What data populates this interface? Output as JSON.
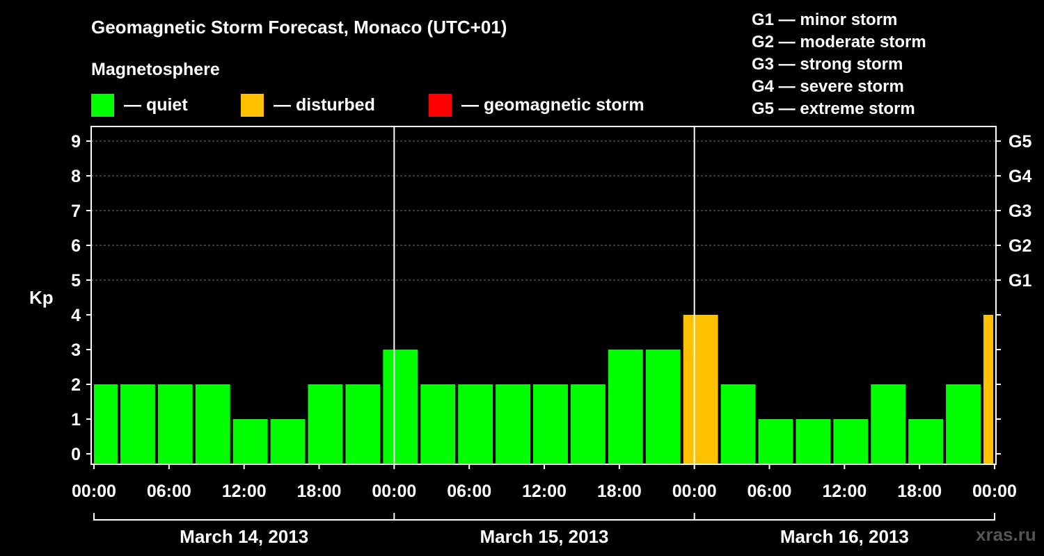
{
  "title": "Geomagnetic Storm Forecast, Monaco (UTC+01)",
  "subtitle": "Magnetosphere",
  "legend": [
    {
      "label": "— quiet",
      "color": "#00ff00"
    },
    {
      "label": "— disturbed",
      "color": "#ffc000"
    },
    {
      "label": "— geomagnetic storm",
      "color": "#ff0000"
    }
  ],
  "g_scale": [
    "G1 — minor storm",
    "G2 — moderate storm",
    "G3 — strong storm",
    "G4 — severe storm",
    "G5 — extreme storm"
  ],
  "watermark": "xras.ru",
  "chart_data": {
    "type": "bar",
    "ylabel": "Kp",
    "ylim": [
      0,
      9
    ],
    "y_ticks": [
      "0",
      "1",
      "2",
      "3",
      "4",
      "5",
      "6",
      "7",
      "8",
      "9"
    ],
    "right_ticks": [
      {
        "label": "G1",
        "kp": 5
      },
      {
        "label": "G2",
        "kp": 6
      },
      {
        "label": "G3",
        "kp": 7
      },
      {
        "label": "G4",
        "kp": 8
      },
      {
        "label": "G5",
        "kp": 9
      }
    ],
    "x_tick_labels": [
      "00:00",
      "06:00",
      "12:00",
      "18:00",
      "00:00",
      "06:00",
      "12:00",
      "18:00",
      "00:00",
      "06:00",
      "12:00",
      "18:00",
      "00:00"
    ],
    "day_labels": [
      "March 14, 2013",
      "March 15, 2013",
      "March 16, 2013"
    ],
    "x_hours_range": [
      0,
      72
    ],
    "bars": [
      {
        "start_hour": 0,
        "end_hour": 2,
        "kp": 2,
        "level": "quiet"
      },
      {
        "start_hour": 2,
        "end_hour": 5,
        "kp": 2,
        "level": "quiet"
      },
      {
        "start_hour": 5,
        "end_hour": 8,
        "kp": 2,
        "level": "quiet"
      },
      {
        "start_hour": 8,
        "end_hour": 11,
        "kp": 2,
        "level": "quiet"
      },
      {
        "start_hour": 11,
        "end_hour": 14,
        "kp": 1,
        "level": "quiet"
      },
      {
        "start_hour": 14,
        "end_hour": 17,
        "kp": 1,
        "level": "quiet"
      },
      {
        "start_hour": 17,
        "end_hour": 20,
        "kp": 2,
        "level": "quiet"
      },
      {
        "start_hour": 20,
        "end_hour": 23,
        "kp": 2,
        "level": "quiet"
      },
      {
        "start_hour": 23,
        "end_hour": 26,
        "kp": 3,
        "level": "quiet"
      },
      {
        "start_hour": 26,
        "end_hour": 29,
        "kp": 2,
        "level": "quiet"
      },
      {
        "start_hour": 29,
        "end_hour": 32,
        "kp": 2,
        "level": "quiet"
      },
      {
        "start_hour": 32,
        "end_hour": 35,
        "kp": 2,
        "level": "quiet"
      },
      {
        "start_hour": 35,
        "end_hour": 38,
        "kp": 2,
        "level": "quiet"
      },
      {
        "start_hour": 38,
        "end_hour": 41,
        "kp": 2,
        "level": "quiet"
      },
      {
        "start_hour": 41,
        "end_hour": 44,
        "kp": 3,
        "level": "quiet"
      },
      {
        "start_hour": 44,
        "end_hour": 47,
        "kp": 3,
        "level": "quiet"
      },
      {
        "start_hour": 47,
        "end_hour": 50,
        "kp": 4,
        "level": "disturbed"
      },
      {
        "start_hour": 50,
        "end_hour": 53,
        "kp": 2,
        "level": "quiet"
      },
      {
        "start_hour": 53,
        "end_hour": 56,
        "kp": 1,
        "level": "quiet"
      },
      {
        "start_hour": 56,
        "end_hour": 59,
        "kp": 1,
        "level": "quiet"
      },
      {
        "start_hour": 59,
        "end_hour": 62,
        "kp": 1,
        "level": "quiet"
      },
      {
        "start_hour": 62,
        "end_hour": 65,
        "kp": 2,
        "level": "quiet"
      },
      {
        "start_hour": 65,
        "end_hour": 68,
        "kp": 1,
        "level": "quiet"
      },
      {
        "start_hour": 68,
        "end_hour": 71,
        "kp": 2,
        "level": "quiet"
      },
      {
        "start_hour": 71,
        "end_hour": 72,
        "kp": 4,
        "level": "disturbed"
      }
    ],
    "grid": true
  }
}
